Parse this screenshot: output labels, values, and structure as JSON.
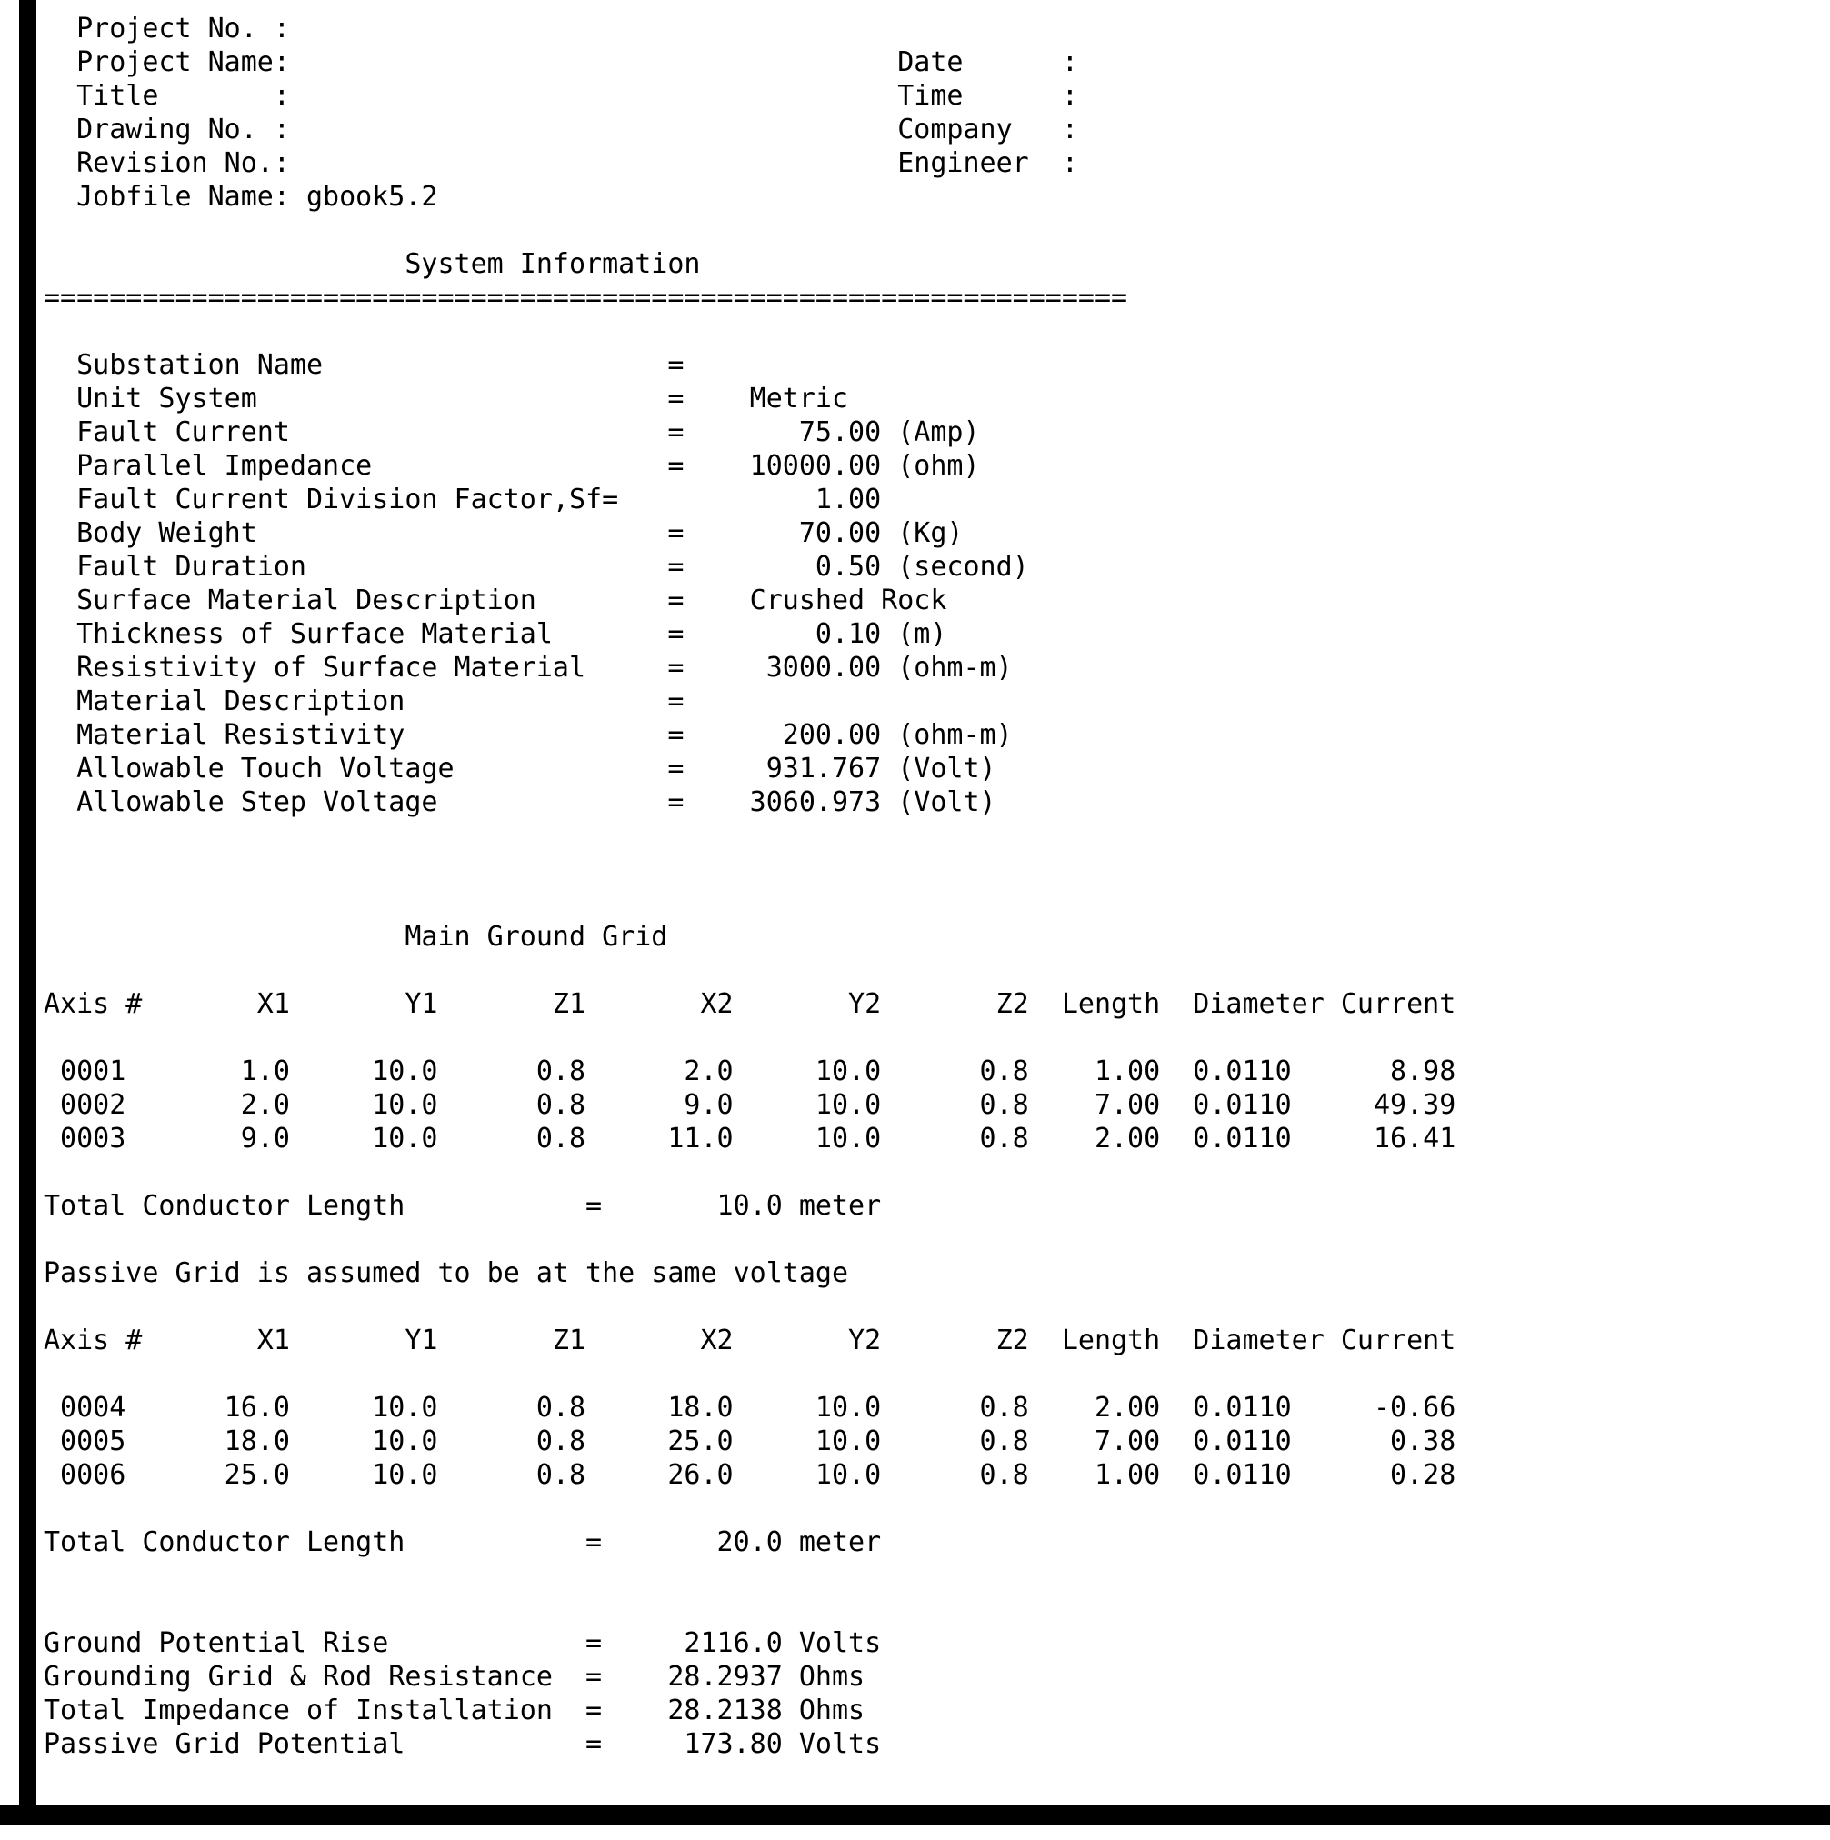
{
  "page": {
    "background": "#ffffff",
    "text_color": "#000000",
    "frame_color": "#000000"
  },
  "header": {
    "left_fields": [
      {
        "label": "Project No.",
        "value": ""
      },
      {
        "label": "Project Name",
        "value": ""
      },
      {
        "label": "Title",
        "value": ""
      },
      {
        "label": "Drawing No.",
        "value": ""
      },
      {
        "label": "Revision No.",
        "value": ""
      },
      {
        "label": "Jobfile Name",
        "value": "gbook5.2"
      }
    ],
    "right_fields": [
      {
        "label": "Date",
        "value": ""
      },
      {
        "label": "Time",
        "value": ""
      },
      {
        "label": "Company",
        "value": ""
      },
      {
        "label": "Engineer",
        "value": ""
      }
    ]
  },
  "system_information": {
    "title": "System Information",
    "divider": "==================================================================",
    "entries": [
      {
        "label": "Substation Name",
        "value": "",
        "unit": ""
      },
      {
        "label": "Unit System",
        "value": "Metric",
        "unit": ""
      },
      {
        "label": "Fault Current",
        "value": "75.00",
        "unit": "(Amp)"
      },
      {
        "label": "Parallel Impedance",
        "value": "10000.00",
        "unit": "(ohm)"
      },
      {
        "label": "Fault Current Division Factor,Sf",
        "value": "1.00",
        "unit": "",
        "glued": true
      },
      {
        "label": "Body Weight",
        "value": "70.00",
        "unit": "(Kg)"
      },
      {
        "label": "Fault Duration",
        "value": "0.50",
        "unit": "(second)"
      },
      {
        "label": "Surface Material Description",
        "value": "Crushed Rock",
        "unit": ""
      },
      {
        "label": "Thickness of Surface Material",
        "value": "0.10",
        "unit": "(m)"
      },
      {
        "label": "Resistivity of Surface Material",
        "value": "3000.00",
        "unit": "(ohm-m)"
      },
      {
        "label": "Material Description",
        "value": "",
        "unit": ""
      },
      {
        "label": "Material Resistivity",
        "value": "200.00",
        "unit": "(ohm-m)"
      },
      {
        "label": "Allowable Touch Voltage",
        "value": "931.767",
        "unit": "(Volt)"
      },
      {
        "label": "Allowable Step Voltage",
        "value": "3060.973",
        "unit": "(Volt)"
      }
    ]
  },
  "main_ground_grid": {
    "title": "Main Ground Grid",
    "columns": [
      "Axis #",
      "X1",
      "Y1",
      "Z1",
      "X2",
      "Y2",
      "Z2",
      "Length",
      "Diameter",
      "Current"
    ],
    "rows": [
      [
        "0001",
        "1.0",
        "10.0",
        "0.8",
        "2.0",
        "10.0",
        "0.8",
        "1.00",
        "0.0110",
        "8.98"
      ],
      [
        "0002",
        "2.0",
        "10.0",
        "0.8",
        "9.0",
        "10.0",
        "0.8",
        "7.00",
        "0.0110",
        "49.39"
      ],
      [
        "0003",
        "9.0",
        "10.0",
        "0.8",
        "11.0",
        "10.0",
        "0.8",
        "2.00",
        "0.0110",
        "16.41"
      ]
    ],
    "total_label": "Total Conductor Length",
    "total_value": "10.0",
    "total_unit": "meter"
  },
  "passive_note": "Passive Grid is assumed to be at the same voltage",
  "passive_grid": {
    "title": "",
    "columns": [
      "Axis #",
      "X1",
      "Y1",
      "Z1",
      "X2",
      "Y2",
      "Z2",
      "Length",
      "Diameter",
      "Current"
    ],
    "rows": [
      [
        "0004",
        "16.0",
        "10.0",
        "0.8",
        "18.0",
        "10.0",
        "0.8",
        "2.00",
        "0.0110",
        "-0.66"
      ],
      [
        "0005",
        "18.0",
        "10.0",
        "0.8",
        "25.0",
        "10.0",
        "0.8",
        "7.00",
        "0.0110",
        "0.38"
      ],
      [
        "0006",
        "25.0",
        "10.0",
        "0.8",
        "26.0",
        "10.0",
        "0.8",
        "1.00",
        "0.0110",
        "0.28"
      ]
    ],
    "total_label": "Total Conductor Length",
    "total_value": "20.0",
    "total_unit": "meter"
  },
  "results": [
    {
      "label": "Ground Potential Rise",
      "value": "2116.0",
      "unit": "Volts"
    },
    {
      "label": "Grounding Grid & Rod Resistance",
      "value": "28.2937",
      "unit": "Ohms"
    },
    {
      "label": "Total Impedance of Installation",
      "value": "28.2138",
      "unit": "Ohms"
    },
    {
      "label": "Passive Grid Potential",
      "value": "173.80",
      "unit": "Volts"
    }
  ]
}
